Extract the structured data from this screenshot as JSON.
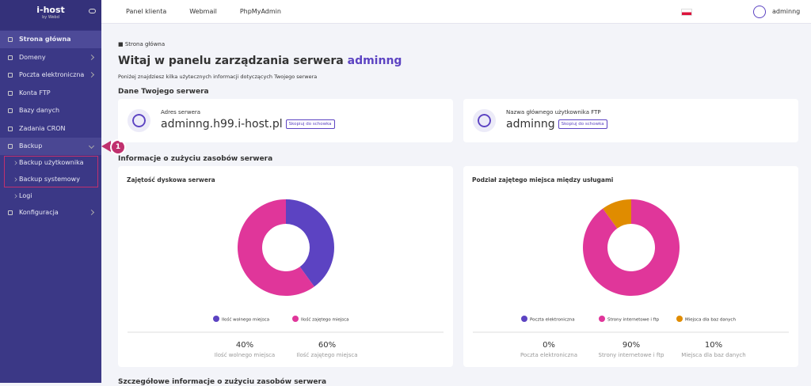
{
  "sidebar": {
    "logo": "i-host",
    "logo_sub": "by Webd",
    "menu": [
      "Strona główna",
      "Domeny",
      "Poczta elektroniczna",
      "Konta FTP",
      "Bazy danych",
      "Zadania CRON",
      "Backup",
      "Backup użytkownika",
      "Backup systemowy",
      "Logi",
      "Konfiguracja"
    ],
    "annotation": "1"
  },
  "topbar": {
    "links": [
      "Panel klienta",
      "Webmail",
      "PhpMyAdmin"
    ],
    "user": "adminng"
  },
  "breadcrumb": "Strona główna",
  "header": {
    "title": "Witaj w panelu zarządzania serwera",
    "title_user": "adminng",
    "subtitle": "Poniżej znajdziesz kilka użytecznych informacji dotyczących Twojego serwera"
  },
  "server_section": {
    "title": "Dane Twojego serwera",
    "cards": [
      {
        "label": "Adres serwera",
        "value": "adminng.h99.i-host.pl",
        "button": "Skopiuj do schowka"
      },
      {
        "label": "Nazwa głównego użytkownika FTP",
        "value": "adminng",
        "button": "Skopiuj do schowka"
      }
    ]
  },
  "usage_section": {
    "title": "Informacje o zużyciu zasobów serwera"
  },
  "footer_section": {
    "title": "Szczegółowe informacje o zużyciu zasobów serwera"
  },
  "chart_data": [
    {
      "type": "pie",
      "title": "Zajętość dyskowa serwera",
      "categories": [
        "Ilość wolnego miejsca",
        "Ilość zajętego miejsca"
      ],
      "values": [
        40,
        60
      ],
      "value_labels": [
        "40%",
        "60%"
      ],
      "colors": [
        "#5c43c2",
        "#e0369a"
      ]
    },
    {
      "type": "pie",
      "title": "Podział zajętego miejsca między usługami",
      "categories": [
        "Poczta elektroniczna",
        "Strony internetowe i ftp",
        "Miejsca dla baz danych"
      ],
      "values": [
        0,
        90,
        10
      ],
      "value_labels": [
        "0%",
        "90%",
        "10%"
      ],
      "colors": [
        "#5c43c2",
        "#e0369a",
        "#e08c00"
      ]
    }
  ]
}
